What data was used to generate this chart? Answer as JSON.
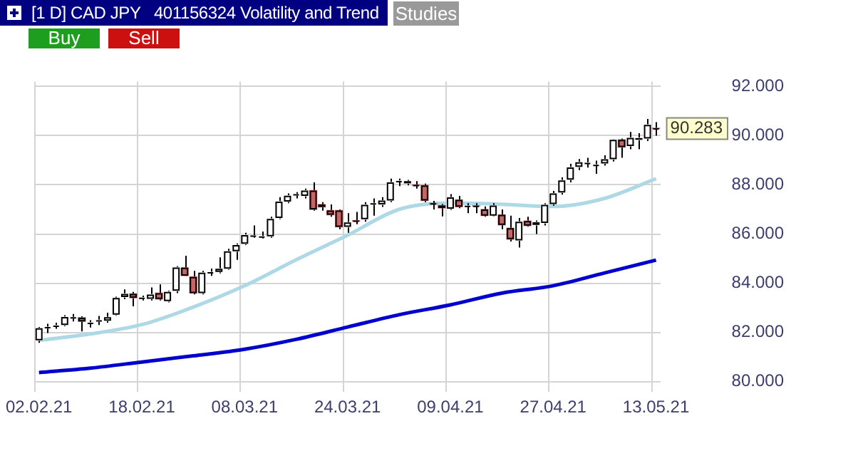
{
  "chart_data": {
    "type": "candlestick",
    "title": "[1 D] CAD JPY   401156324 Volatility and Trend",
    "categories": [
      "02.02.21",
      null,
      null,
      null,
      null,
      null,
      null,
      null,
      null,
      null,
      null,
      null,
      "18.02.21",
      null,
      null,
      null,
      null,
      null,
      null,
      null,
      null,
      null,
      null,
      null,
      "08.03.21",
      null,
      null,
      null,
      null,
      null,
      null,
      null,
      null,
      null,
      null,
      null,
      "24.03.21",
      null,
      null,
      null,
      null,
      null,
      null,
      null,
      null,
      null,
      null,
      null,
      "09.04.21",
      null,
      null,
      null,
      null,
      null,
      null,
      null,
      null,
      null,
      null,
      null,
      "27.04.21",
      null,
      null,
      null,
      null,
      null,
      null,
      null,
      null,
      null,
      null,
      null,
      "13.05.21"
    ],
    "ohlc": [
      [
        81.68,
        82.22,
        81.58,
        82.17
      ],
      [
        82.18,
        82.35,
        81.98,
        82.22
      ],
      [
        82.24,
        82.4,
        82.15,
        82.28
      ],
      [
        82.3,
        82.7,
        82.25,
        82.63
      ],
      [
        82.58,
        82.75,
        82.45,
        82.62
      ],
      [
        82.6,
        82.66,
        82.04,
        82.45
      ],
      [
        82.36,
        82.5,
        82.2,
        82.4
      ],
      [
        82.45,
        82.67,
        82.3,
        82.5
      ],
      [
        82.48,
        82.8,
        82.4,
        82.62
      ],
      [
        82.72,
        83.45,
        82.68,
        83.4
      ],
      [
        83.44,
        83.75,
        83.35,
        83.57
      ],
      [
        83.57,
        83.65,
        83.06,
        83.41
      ],
      [
        83.38,
        83.5,
        83.3,
        83.42
      ],
      [
        83.37,
        83.83,
        83.3,
        83.54
      ],
      [
        83.6,
        83.95,
        83.3,
        83.36
      ],
      [
        83.27,
        83.7,
        83.22,
        83.65
      ],
      [
        83.69,
        84.7,
        83.6,
        84.64
      ],
      [
        84.63,
        85.12,
        84.3,
        84.31
      ],
      [
        84.26,
        84.5,
        83.55,
        83.6
      ],
      [
        83.6,
        84.5,
        83.55,
        84.43
      ],
      [
        84.42,
        84.6,
        84.3,
        84.45
      ],
      [
        84.46,
        85.05,
        84.4,
        84.59
      ],
      [
        84.59,
        85.4,
        84.55,
        85.3
      ],
      [
        85.3,
        85.62,
        84.95,
        85.55
      ],
      [
        85.6,
        86.05,
        85.55,
        85.96
      ],
      [
        85.92,
        86.35,
        85.85,
        85.94
      ],
      [
        85.89,
        86.1,
        85.82,
        85.91
      ],
      [
        85.91,
        86.7,
        85.85,
        86.62
      ],
      [
        86.65,
        87.5,
        86.6,
        87.32
      ],
      [
        87.32,
        87.65,
        87.25,
        87.56
      ],
      [
        87.58,
        87.7,
        87.45,
        87.62
      ],
      [
        87.55,
        87.85,
        87.45,
        87.77
      ],
      [
        87.77,
        88.1,
        86.95,
        87.0
      ],
      [
        87.2,
        87.3,
        86.95,
        87.1
      ],
      [
        86.96,
        87.2,
        86.7,
        86.78
      ],
      [
        86.96,
        87.0,
        86.2,
        86.29
      ],
      [
        86.29,
        86.85,
        86.05,
        86.47
      ],
      [
        86.55,
        86.9,
        86.4,
        86.52
      ],
      [
        86.6,
        87.3,
        86.5,
        87.19
      ],
      [
        87.21,
        87.45,
        86.75,
        87.25
      ],
      [
        87.2,
        87.5,
        87.1,
        87.36
      ],
      [
        87.36,
        88.25,
        87.3,
        88.1
      ],
      [
        88.13,
        88.25,
        87.95,
        88.16
      ],
      [
        88.06,
        88.2,
        87.98,
        88.15
      ],
      [
        88.0,
        88.15,
        87.85,
        87.97
      ],
      [
        87.98,
        88.05,
        87.3,
        87.36
      ],
      [
        87.25,
        87.35,
        87.0,
        87.22
      ],
      [
        87.16,
        87.22,
        86.72,
        87.06
      ],
      [
        87.03,
        87.62,
        86.98,
        87.49
      ],
      [
        87.39,
        87.55,
        87.05,
        87.11
      ],
      [
        87.13,
        87.25,
        86.85,
        87.15
      ],
      [
        87.15,
        87.25,
        86.85,
        87.13
      ],
      [
        87.0,
        87.12,
        86.7,
        86.75
      ],
      [
        86.75,
        87.25,
        86.72,
        87.16
      ],
      [
        86.78,
        87.0,
        86.2,
        86.37
      ],
      [
        86.24,
        86.75,
        85.7,
        85.79
      ],
      [
        85.74,
        86.65,
        85.45,
        86.5
      ],
      [
        86.53,
        86.7,
        86.3,
        86.34
      ],
      [
        86.37,
        86.55,
        86.0,
        86.48
      ],
      [
        86.45,
        87.25,
        86.35,
        87.19
      ],
      [
        87.22,
        87.75,
        87.15,
        87.65
      ],
      [
        87.69,
        88.3,
        87.6,
        88.18
      ],
      [
        88.21,
        88.85,
        88.1,
        88.71
      ],
      [
        88.73,
        89.05,
        88.6,
        88.92
      ],
      [
        88.87,
        89.1,
        88.7,
        88.9
      ],
      [
        88.8,
        88.98,
        88.45,
        88.82
      ],
      [
        88.87,
        89.2,
        88.78,
        89.04
      ],
      [
        89.04,
        89.85,
        88.95,
        89.83
      ],
      [
        89.83,
        89.88,
        89.1,
        89.53
      ],
      [
        89.58,
        90.15,
        89.45,
        89.91
      ],
      [
        89.83,
        90.1,
        89.45,
        89.9
      ],
      [
        89.88,
        90.68,
        89.78,
        90.44
      ],
      [
        90.3,
        90.55,
        90.0,
        90.283
      ]
    ],
    "colors": [
      "#ffffff",
      "#ffffff",
      "#ffffff",
      "#ffffff",
      "#ffffff",
      "#c86464",
      "#ffffff",
      "#ffffff",
      "#ffffff",
      "#ffffff",
      "#ffffff",
      "#c86464",
      "#ffffff",
      "#ffffff",
      "#c86464",
      "#ffffff",
      "#ffffff",
      "#c86464",
      "#c86464",
      "#ffffff",
      "#ffffff",
      "#ffffff",
      "#ffffff",
      "#ffffff",
      "#ffffff",
      "#ffffff",
      "#ffffff",
      "#ffffff",
      "#ffffff",
      "#ffffff",
      "#ffffff",
      "#ffffff",
      "#c86464",
      "#c86464",
      "#c86464",
      "#c86464",
      "#ffffff",
      "#c86464",
      "#ffffff",
      "#ffffff",
      "#ffffff",
      "#ffffff",
      "#ffffff",
      "#ffffff",
      "#c86464",
      "#c86464",
      "#c86464",
      "#c86464",
      "#ffffff",
      "#c86464",
      "#ffffff",
      "#c86464",
      "#c86464",
      "#ffffff",
      "#c86464",
      "#c86464",
      "#ffffff",
      "#c86464",
      "#ffffff",
      "#ffffff",
      "#ffffff",
      "#ffffff",
      "#ffffff",
      "#ffffff",
      "#ffffff",
      "#ffffff",
      "#ffffff",
      "#ffffff",
      "#c86464",
      "#ffffff",
      "#ffffff",
      "#ffffff",
      "#c86464"
    ],
    "series": [
      {
        "type": "line",
        "color": "#add8e6",
        "values": [
          81.68,
          null,
          null,
          null,
          null,
          null,
          81.94,
          null,
          null,
          null,
          null,
          null,
          82.32,
          null,
          null,
          null,
          null,
          null,
          83.03,
          null,
          null,
          null,
          null,
          null,
          83.9,
          null,
          null,
          null,
          null,
          null,
          84.95,
          null,
          null,
          null,
          null,
          null,
          85.95,
          null,
          null,
          null,
          null,
          null,
          87.0,
          null,
          null,
          null,
          null,
          null,
          87.26,
          null,
          null,
          null,
          null,
          null,
          87.21,
          null,
          null,
          null,
          null,
          null,
          87.12,
          null,
          null,
          null,
          null,
          null,
          87.45,
          null,
          null,
          null,
          null,
          null,
          88.25
        ]
      },
      {
        "type": "line",
        "color": "#0000cd",
        "values": [
          80.37,
          null,
          null,
          null,
          null,
          null,
          80.55,
          null,
          null,
          null,
          null,
          null,
          80.8,
          null,
          null,
          null,
          null,
          null,
          81.05,
          null,
          null,
          null,
          null,
          null,
          81.32,
          null,
          null,
          null,
          null,
          null,
          81.72,
          null,
          null,
          null,
          null,
          null,
          82.22,
          null,
          null,
          null,
          null,
          null,
          82.72,
          null,
          null,
          null,
          null,
          null,
          83.12,
          null,
          null,
          null,
          null,
          null,
          83.6,
          null,
          null,
          null,
          null,
          null,
          83.9,
          null,
          null,
          null,
          null,
          null,
          84.42,
          null,
          null,
          null,
          null,
          null,
          84.94
        ]
      }
    ],
    "ylim": [
      79.6,
      92.2
    ],
    "yticks": [
      {
        "value": 80,
        "label": "80.000"
      },
      {
        "value": 82,
        "label": "82.000"
      },
      {
        "value": 84,
        "label": "84.000"
      },
      {
        "value": 86,
        "label": "86.000"
      },
      {
        "value": 88,
        "label": "88.000"
      },
      {
        "value": 90,
        "label": "90.000"
      },
      {
        "value": 92,
        "label": "92.000"
      }
    ],
    "grid": true,
    "annotations": [
      "Studies",
      "Buy",
      "Sell",
      {
        "text": "90.283",
        "x": "13.05.21",
        "y": 90.283
      }
    ]
  }
}
